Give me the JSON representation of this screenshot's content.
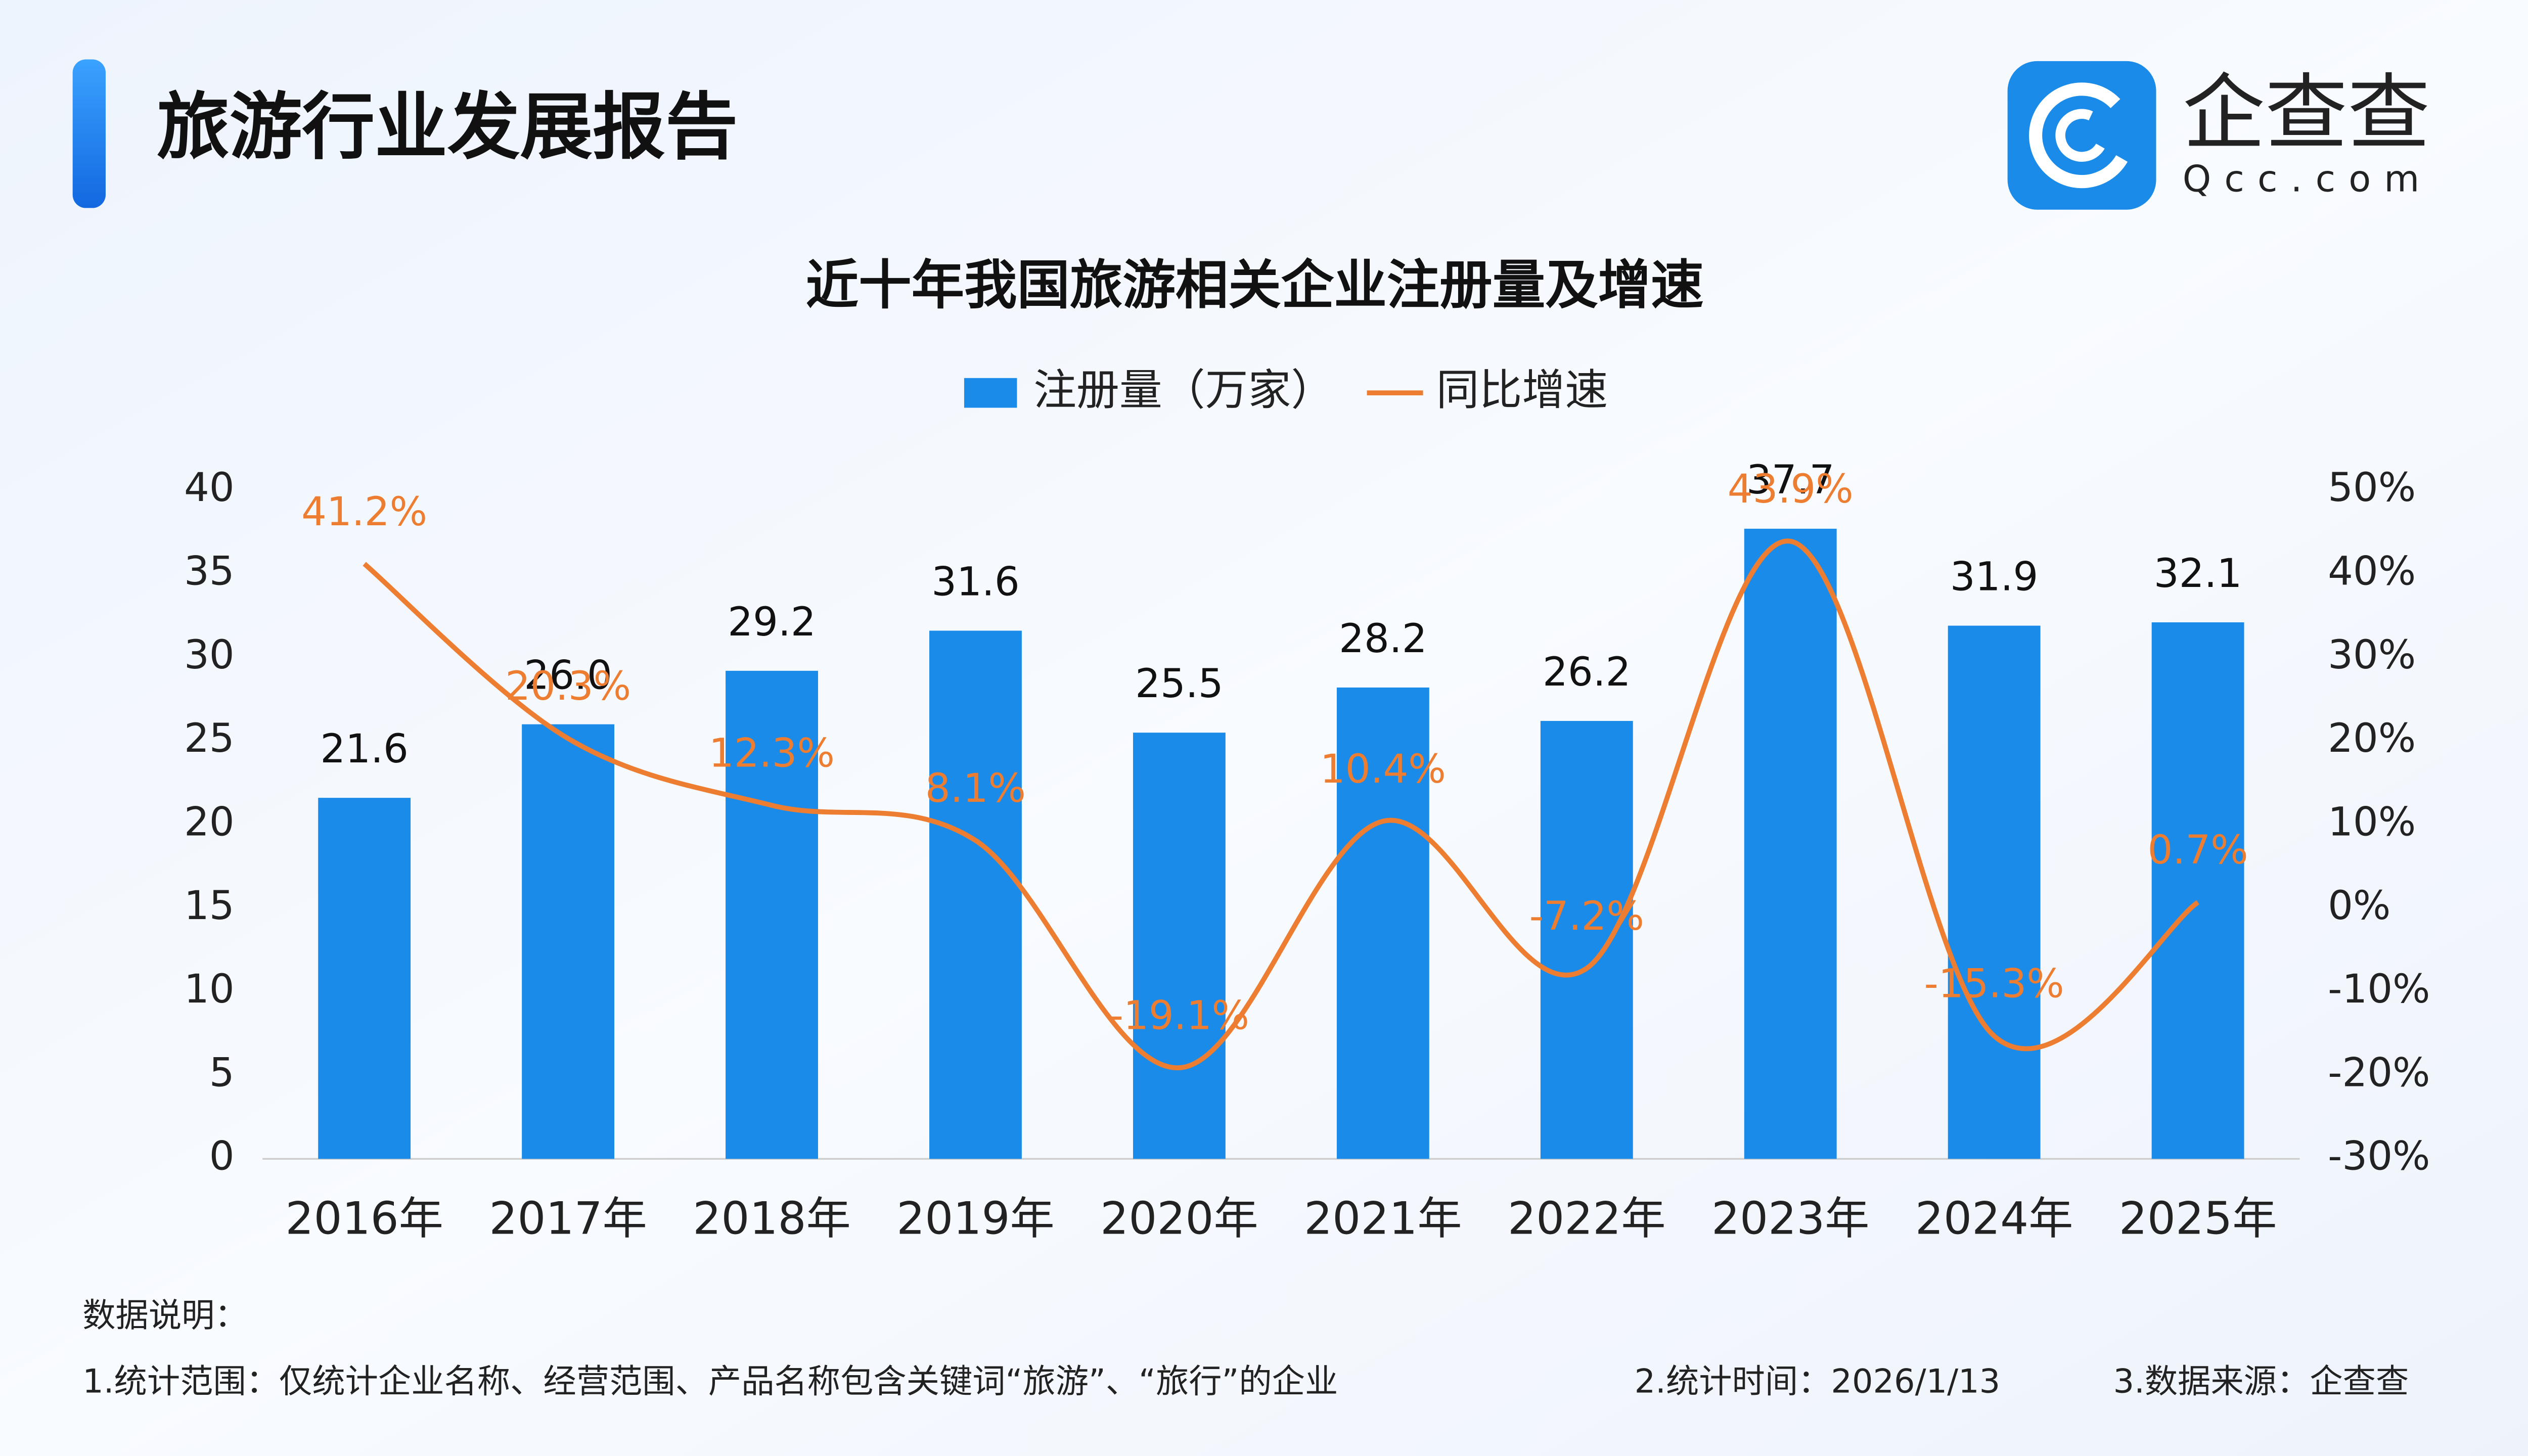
{
  "header": {
    "title": "旅游行业发展报告"
  },
  "logo": {
    "name": "企查查",
    "domain": "Qcc.com"
  },
  "chart_data": {
    "type": "bar",
    "title": "近十年我国旅游相关企业注册量及增速",
    "categories": [
      "2016年",
      "2017年",
      "2018年",
      "2019年",
      "2020年",
      "2021年",
      "2022年",
      "2023年",
      "2024年",
      "2025年"
    ],
    "series": [
      {
        "name": "注册量（万家）",
        "type": "bar",
        "color": "#1a8be9",
        "values": [
          21.6,
          26.0,
          29.2,
          31.6,
          25.5,
          28.2,
          26.2,
          37.7,
          31.9,
          32.1
        ],
        "value_labels": [
          "21.6",
          "26.0",
          "29.2",
          "31.6",
          "25.5",
          "28.2",
          "26.2",
          "37.7",
          "31.9",
          "32.1"
        ]
      },
      {
        "name": "同比增速",
        "type": "line",
        "axis": "y2",
        "color": "#ed7d31",
        "values": [
          41.2,
          20.3,
          12.3,
          8.1,
          -19.1,
          10.4,
          -7.2,
          43.9,
          -15.3,
          0.7
        ],
        "value_labels": [
          "41.2%",
          "20.3%",
          "12.3%",
          "8.1%",
          "-19.1%",
          "10.4%",
          "-7.2%",
          "43.9%",
          "-15.3%",
          "0.7%"
        ]
      }
    ],
    "ylim": [
      0,
      40
    ],
    "yticks": [
      0,
      5,
      10,
      15,
      20,
      25,
      30,
      35,
      40
    ],
    "y2lim": [
      -30,
      50
    ],
    "y2ticks": [
      {
        "value": -30,
        "label": "-30%"
      },
      {
        "value": -20,
        "label": "-20%"
      },
      {
        "value": -10,
        "label": "-10%"
      },
      {
        "value": 0,
        "label": "0%"
      },
      {
        "value": 10,
        "label": "10%"
      },
      {
        "value": 20,
        "label": "20%"
      },
      {
        "value": 30,
        "label": "30%"
      },
      {
        "value": 40,
        "label": "40%"
      },
      {
        "value": 50,
        "label": "50%"
      }
    ],
    "grid": false,
    "legend": "top"
  },
  "notes": {
    "heading": "数据说明：",
    "items": [
      "1.统计范围：仅统计企业名称、经营范围、产品名称包含关键词“旅游”、“旅行”的企业",
      "2.统计时间：2026/1/13",
      "3.数据来源：企查查"
    ]
  }
}
